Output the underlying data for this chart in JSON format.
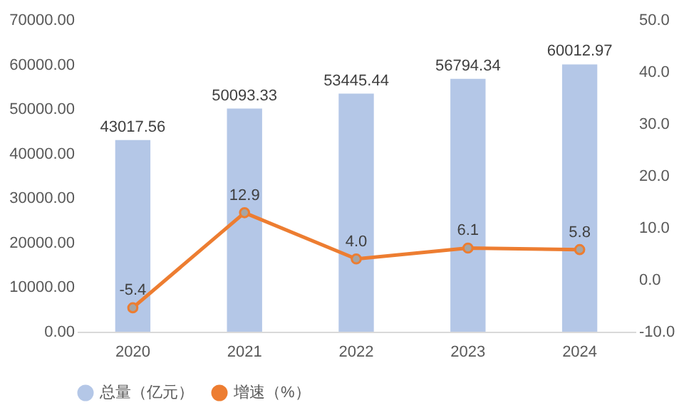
{
  "chart_data": {
    "type": "bar",
    "categories": [
      "2020",
      "2021",
      "2022",
      "2023",
      "2024"
    ],
    "series": [
      {
        "name": "总量（亿元）",
        "color": "#b4c7e7",
        "values": [
          43017.56,
          50093.33,
          53445.44,
          56794.34,
          60012.97
        ],
        "value_labels": [
          "43017.56",
          "50093.33",
          "53445.44",
          "56794.34",
          "60012.97"
        ]
      },
      {
        "name": "增速（%）",
        "type": "line",
        "axis": "y2",
        "color": "#ed7d31",
        "values": [
          -5.4,
          12.9,
          4.0,
          6.1,
          5.8
        ],
        "value_labels": [
          "-5.4",
          "12.9",
          "4.0",
          "6.1",
          "5.8"
        ]
      }
    ],
    "ylim": [
      0,
      70000
    ],
    "yticks": [
      {
        "value": 0,
        "label": "0.00"
      },
      {
        "value": 10000,
        "label": "10000.00"
      },
      {
        "value": 20000,
        "label": "20000.00"
      },
      {
        "value": 30000,
        "label": "30000.00"
      },
      {
        "value": 40000,
        "label": "40000.00"
      },
      {
        "value": 50000,
        "label": "50000.00"
      },
      {
        "value": 60000,
        "label": "60000.00"
      },
      {
        "value": 70000,
        "label": "70000.00"
      }
    ],
    "y2lim": [
      -10,
      50
    ],
    "y2ticks": [
      {
        "value": -10,
        "label": "-10.0"
      },
      {
        "value": 0,
        "label": "0.0"
      },
      {
        "value": 10,
        "label": "10.0"
      },
      {
        "value": 20,
        "label": "20.0"
      },
      {
        "value": 30,
        "label": "30.0"
      },
      {
        "value": 40,
        "label": "40.0"
      },
      {
        "value": 50,
        "label": "50.0"
      }
    ],
    "legend": "bottom",
    "marker": "circle",
    "line_style": "solid"
  }
}
